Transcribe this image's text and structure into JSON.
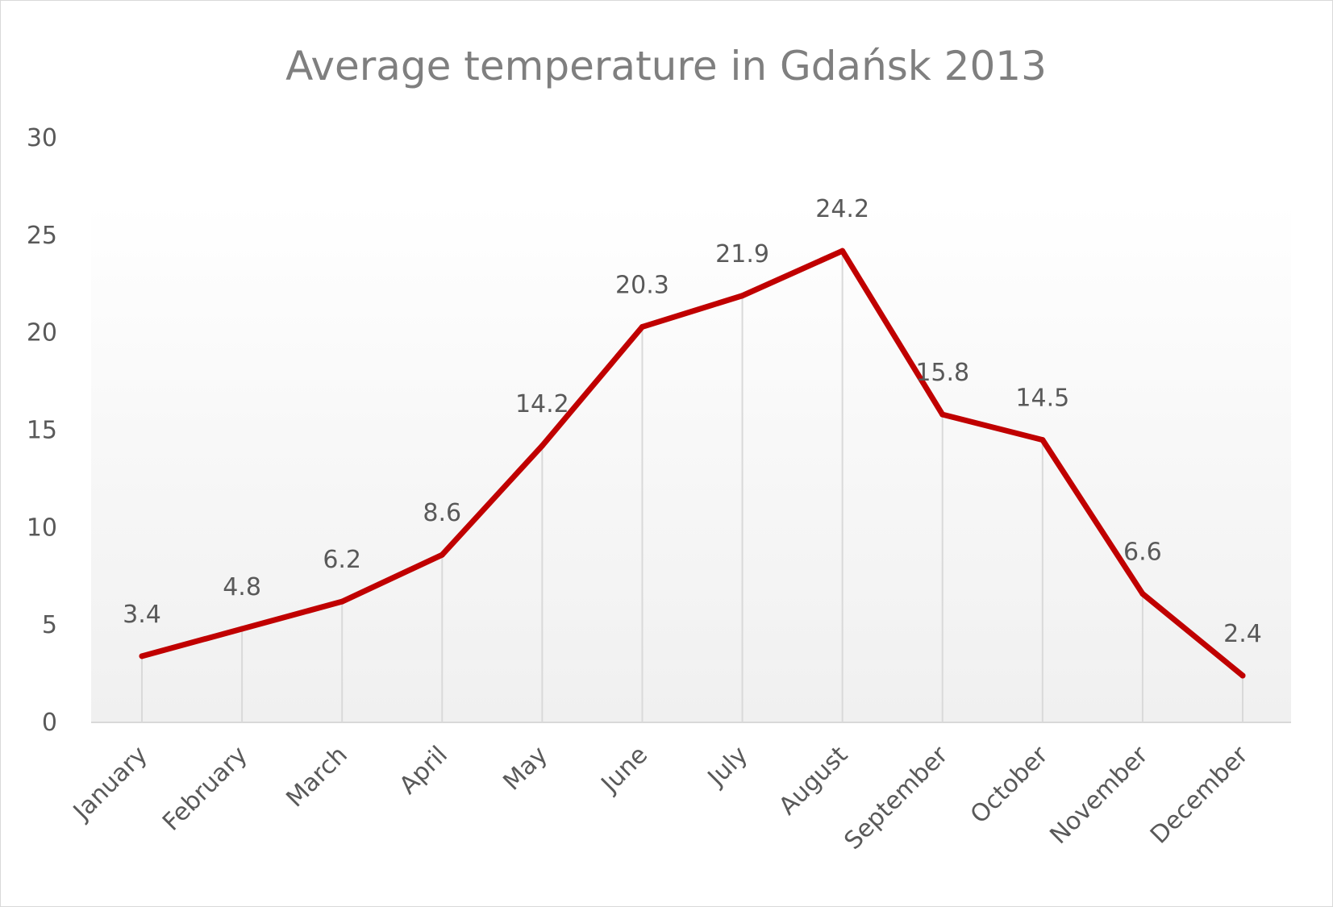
{
  "chart_data": {
    "type": "line",
    "title": "Average temperature in Gdańsk 2013",
    "xlabel": "",
    "ylabel": "",
    "categories": [
      "January",
      "February",
      "March",
      "April",
      "May",
      "June",
      "July",
      "August",
      "September",
      "October",
      "November",
      "December"
    ],
    "series": [
      {
        "values": [
          3.4,
          4.8,
          6.2,
          8.6,
          14.2,
          20.3,
          21.9,
          24.2,
          15.8,
          14.5,
          6.6,
          2.4
        ],
        "color": "#c00000"
      }
    ],
    "data_labels": [
      "3.4",
      "4.8",
      "6.2",
      "8.6",
      "14.2",
      "20.3",
      "21.9",
      "24.2",
      "15.8",
      "14.5",
      "6.6",
      "2.4"
    ],
    "ylim": [
      0,
      30
    ],
    "yticks": [
      0,
      5,
      10,
      15,
      20,
      25,
      30
    ],
    "y_tick_labels": [
      "0",
      "5",
      "10",
      "15",
      "20",
      "25",
      "30"
    ],
    "grid": "vertical drop lines",
    "legend": "none"
  }
}
